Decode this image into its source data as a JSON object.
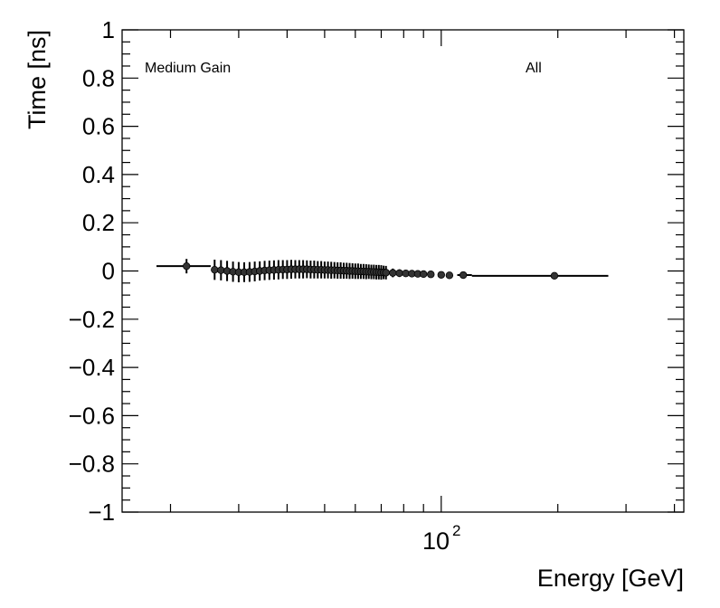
{
  "chart_data": {
    "type": "scatter",
    "title": "",
    "xlabel": "Energy [GeV]",
    "ylabel": "Time [ns]",
    "x_scale": "log",
    "xlim": [
      15,
      423
    ],
    "ylim": [
      -1,
      1
    ],
    "grid": false,
    "x_tick_labels": [
      {
        "value": 100,
        "base": "10",
        "exp": "2"
      }
    ],
    "y_ticks": [
      -1,
      -0.8,
      -0.6,
      -0.4,
      -0.2,
      0,
      0.2,
      0.4,
      0.6,
      0.8,
      1
    ],
    "y_tick_labels": [
      "−1",
      "−0.8",
      "−0.6",
      "−0.4",
      "−0.2",
      "0",
      "0.2",
      "0.4",
      "0.6",
      "0.8",
      "1"
    ],
    "annotations": {
      "left": "Medium Gain",
      "right": "All"
    },
    "marker_color": "#000000",
    "points": {
      "x": [
        22,
        26,
        27,
        28,
        29,
        30,
        31,
        32,
        33,
        34,
        35,
        36,
        37,
        38,
        39,
        40,
        41,
        42,
        43,
        44,
        45,
        46,
        47,
        48,
        49,
        50,
        51,
        52,
        53,
        54,
        55,
        56,
        57,
        58,
        59,
        60,
        61,
        62,
        63,
        64,
        65,
        66,
        67,
        68,
        69,
        70,
        71,
        72,
        75,
        78,
        81,
        84,
        87,
        90,
        94,
        100,
        105,
        114,
        196
      ],
      "y": [
        0.02,
        0.005,
        0.003,
        0.0,
        -0.003,
        -0.005,
        -0.005,
        -0.004,
        -0.002,
        0.0,
        0.002,
        0.003,
        0.004,
        0.005,
        0.006,
        0.006,
        0.007,
        0.007,
        0.007,
        0.007,
        0.007,
        0.006,
        0.006,
        0.005,
        0.005,
        0.004,
        0.004,
        0.003,
        0.003,
        0.002,
        0.002,
        0.001,
        0.001,
        0.0,
        0.0,
        -0.001,
        -0.001,
        -0.002,
        -0.002,
        -0.003,
        -0.003,
        -0.004,
        -0.004,
        -0.005,
        -0.005,
        -0.006,
        -0.006,
        -0.007,
        -0.008,
        -0.009,
        -0.01,
        -0.011,
        -0.012,
        -0.013,
        -0.014,
        -0.016,
        -0.018,
        -0.017,
        -0.02
      ],
      "yerr": [
        0.03,
        0.042,
        0.042,
        0.042,
        0.042,
        0.042,
        0.041,
        0.041,
        0.041,
        0.04,
        0.04,
        0.04,
        0.04,
        0.04,
        0.039,
        0.039,
        0.039,
        0.038,
        0.038,
        0.038,
        0.037,
        0.037,
        0.037,
        0.036,
        0.036,
        0.035,
        0.035,
        0.035,
        0.034,
        0.034,
        0.034,
        0.033,
        0.033,
        0.033,
        0.032,
        0.032,
        0.032,
        0.031,
        0.031,
        0.031,
        0.03,
        0.03,
        0.03,
        0.03,
        0.03,
        0.03,
        0.028,
        0.028,
        0.018,
        0.016,
        0.014,
        0.013,
        0.012,
        0.011,
        0.01,
        0.008,
        0.007,
        0.006,
        0.005
      ],
      "xlow": [
        18.4,
        null,
        null,
        null,
        null,
        null,
        null,
        null,
        null,
        null,
        null,
        null,
        null,
        null,
        null,
        null,
        null,
        null,
        null,
        null,
        null,
        null,
        null,
        null,
        null,
        null,
        null,
        null,
        null,
        null,
        null,
        null,
        null,
        null,
        null,
        null,
        null,
        null,
        null,
        null,
        null,
        null,
        null,
        null,
        null,
        null,
        null,
        null,
        null,
        null,
        null,
        null,
        null,
        null,
        null,
        null,
        null,
        110,
        120
      ],
      "xhigh": [
        25.4,
        null,
        null,
        null,
        null,
        null,
        null,
        null,
        null,
        null,
        null,
        null,
        null,
        null,
        null,
        null,
        null,
        null,
        null,
        null,
        null,
        null,
        null,
        null,
        null,
        null,
        null,
        null,
        null,
        null,
        null,
        null,
        null,
        null,
        null,
        null,
        null,
        null,
        null,
        null,
        null,
        null,
        null,
        null,
        null,
        null,
        null,
        null,
        null,
        null,
        null,
        null,
        null,
        null,
        null,
        null,
        null,
        120,
        270
      ]
    }
  }
}
